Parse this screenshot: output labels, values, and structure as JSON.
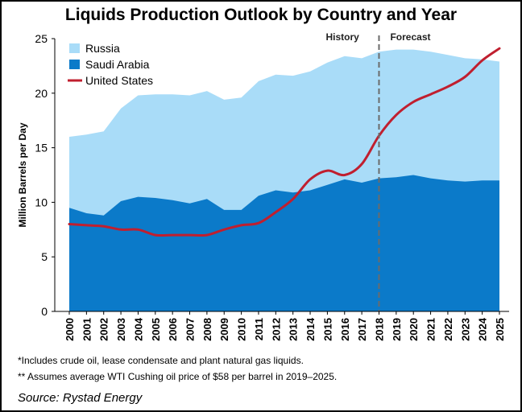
{
  "chart_data": {
    "type": "area",
    "title": "Liquids Production Outlook by Country and Year",
    "ylabel": "Million Barrels per Day",
    "xlabel": "",
    "ylim": [
      0,
      25
    ],
    "yticks": [
      0,
      5,
      10,
      15,
      20,
      25
    ],
    "x": [
      "2000",
      "2001",
      "2002",
      "2003",
      "2004",
      "2005",
      "2006",
      "2007",
      "2008",
      "2009",
      "2010",
      "2011",
      "2012",
      "2013",
      "2014",
      "2015",
      "2016",
      "2017",
      "2018",
      "2019",
      "2020",
      "2021",
      "2022",
      "2023",
      "2024",
      "2025"
    ],
    "series": [
      {
        "name": "Saudi Arabia",
        "kind": "area",
        "color": "#0b7ac9",
        "values": [
          9.5,
          9.0,
          8.8,
          10.1,
          10.5,
          10.4,
          10.2,
          9.9,
          10.3,
          9.3,
          9.3,
          10.6,
          11.1,
          10.9,
          11.1,
          11.6,
          12.1,
          11.8,
          12.2,
          12.3,
          12.5,
          12.2,
          12.0,
          11.9,
          12.0,
          12.0
        ]
      },
      {
        "name": "Russia",
        "kind": "area",
        "color": "#a9dcf8",
        "values": [
          16.0,
          16.2,
          16.5,
          18.6,
          19.8,
          19.9,
          19.9,
          19.8,
          20.2,
          19.4,
          19.6,
          21.1,
          21.7,
          21.6,
          22.0,
          22.8,
          23.4,
          23.2,
          23.8,
          24.0,
          24.0,
          23.8,
          23.5,
          23.2,
          23.1,
          22.9
        ]
      },
      {
        "name": "United States",
        "kind": "line",
        "color": "#c01f2f",
        "values": [
          8.0,
          7.9,
          7.8,
          7.5,
          7.5,
          7.0,
          7.0,
          7.0,
          7.0,
          7.5,
          7.9,
          8.1,
          9.1,
          10.3,
          12.1,
          12.9,
          12.5,
          13.5,
          16.1,
          18.0,
          19.2,
          19.9,
          20.6,
          21.5,
          23.0,
          24.1
        ]
      }
    ],
    "legend": [
      "Russia",
      "Saudi Arabia",
      "United States"
    ],
    "legend_position": "top-left",
    "divider": {
      "at": "2018",
      "style": "dashed",
      "color": "#6b6b6b"
    },
    "annotations": [
      "History",
      "Forecast"
    ]
  },
  "notes": {
    "note1": "*Includes crude oil, lease condensate and plant natural gas liquids.",
    "note2": "** Assumes average WTI Cushing oil price of $58 per barrel in 2019–2025."
  },
  "source": "Source: Rystad Energy"
}
